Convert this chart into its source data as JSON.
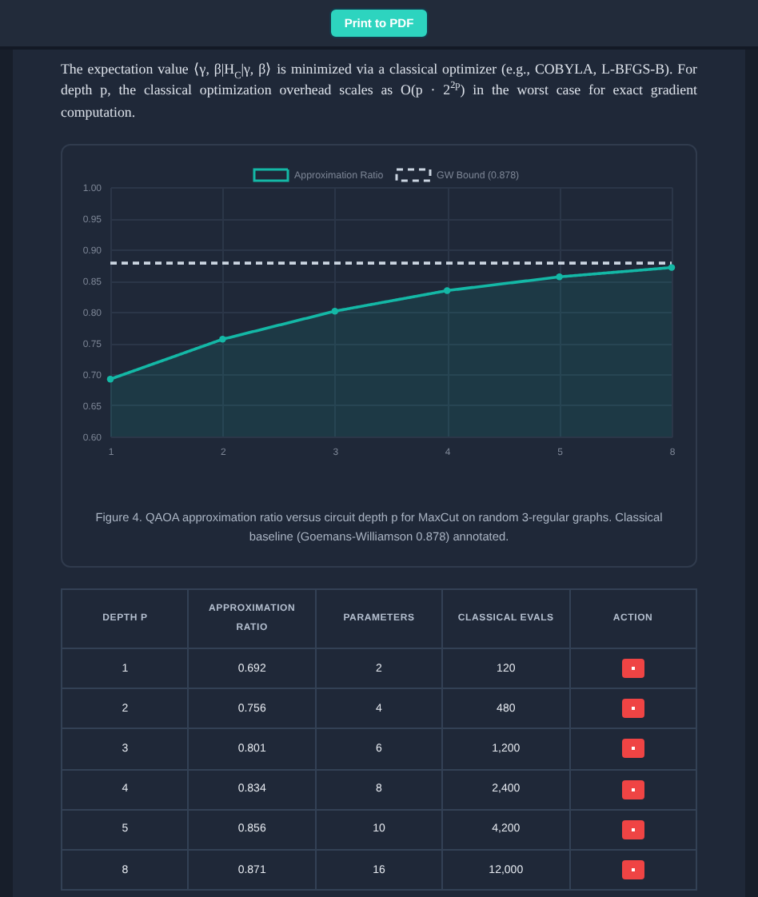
{
  "chart_data": [
    {
      "type": "other",
      "annotations": [
        "Print to PDF",
        "The expectation value ⟨γ, β|H$_{C}$|γ, β⟩ is minimized via a classical optimizer (e.g., COBYLA, L-BFGS-B). For depth p, the classical optimization overhead scales as O(p · 2$^{2p}$) in the worst case for exact gradient computation."
      ]
    },
    {
      "type": "area",
      "categories": [
        "1",
        "2",
        "3",
        "4",
        "5",
        "8"
      ],
      "series": [
        {
          "name": "Approximation Ratio",
          "color": "#14b8a6",
          "values": [
            0.692,
            0.756,
            0.801,
            0.834,
            0.856,
            0.871
          ]
        },
        {
          "name": "GW Bound (0.878)",
          "type": "line",
          "color": "#cbd5e1",
          "line_style": "dashed",
          "marker": "none",
          "values": [
            0.878,
            0.878,
            0.878,
            0.878,
            0.878,
            0.878
          ]
        }
      ],
      "ylim": [
        0.6,
        1.0
      ],
      "yticks": [
        {
          "value": 0.6,
          "label": "0.60"
        },
        0.65,
        {
          "value": 0.7,
          "label": "0.70"
        },
        0.75,
        {
          "value": 0.8,
          "label": "0.80"
        },
        0.85,
        {
          "value": 0.9,
          "label": "0.90"
        },
        0.95,
        {
          "value": 1.0,
          "label": "1.00"
        }
      ],
      "grid": true,
      "legend": "top",
      "marker": "circle",
      "annotations": [
        "Figure 4. QAOA approximation ratio versus circuit depth p for MaxCut on random 3-regular graphs. Classical baseline (Goemans-Williamson 0.878) annotated."
      ]
    },
    {
      "type": "other",
      "categories": [
        "DEPTH P",
        "APPROXIMATION RATIO",
        "PARAMETERS",
        "CLASSICAL EVALS"
      ],
      "series": [
        {
          "values": [
            1,
            0.692,
            2,
            120
          ]
        },
        {
          "values": [
            2,
            0.756,
            4,
            480
          ]
        },
        {
          "values": [
            3,
            0.801,
            6,
            1200
          ],
          "value_labels": [
            "3",
            "0.801",
            "6",
            "1,200"
          ]
        },
        {
          "values": [
            4,
            0.834,
            8,
            2400
          ],
          "value_labels": [
            "4",
            "0.834",
            "8",
            "2,400"
          ]
        },
        {
          "values": [
            5,
            0.856,
            10,
            4200
          ],
          "value_labels": [
            "5",
            "0.856",
            "10",
            "4,200"
          ]
        },
        {
          "values": [
            8,
            0.871,
            16,
            12000
          ],
          "value_labels": [
            "8",
            "0.871",
            "16",
            "12,000"
          ]
        }
      ],
      "data_labels": true,
      "annotations": [
        "ACTION"
      ]
    }
  ]
}
